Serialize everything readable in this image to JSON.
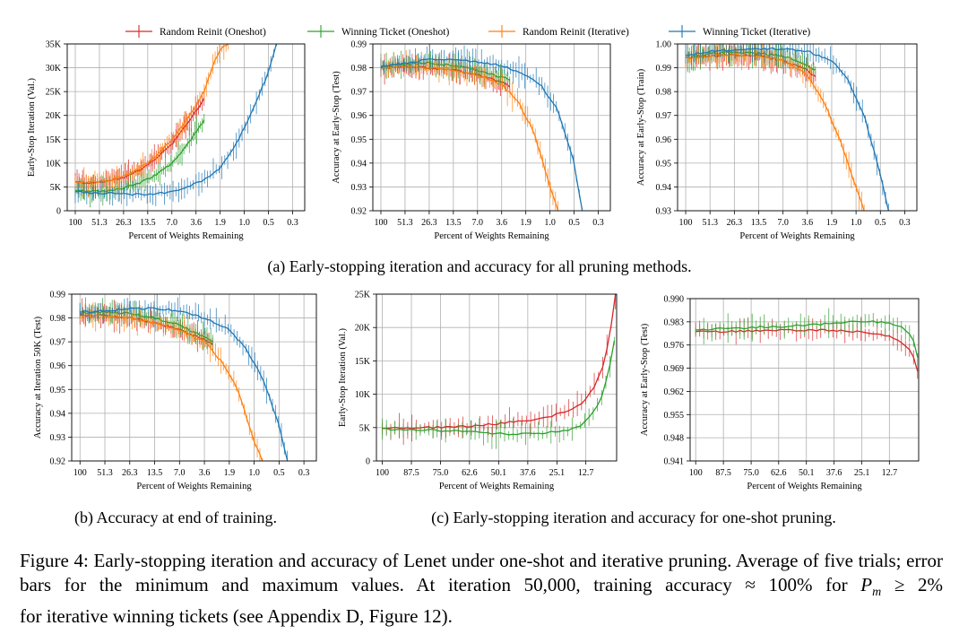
{
  "legend": [
    {
      "key": "rr_one",
      "label": "Random Reinit (Oneshot)",
      "color": "#d62728"
    },
    {
      "key": "wt_one",
      "label": "Winning Ticket (Oneshot)",
      "color": "#2ca02c"
    },
    {
      "key": "rr_it",
      "label": "Random Reinit (Iterative)",
      "color": "#ff7f0e"
    },
    {
      "key": "wt_it",
      "label": "Winning Ticket (Iterative)",
      "color": "#1f77b4"
    }
  ],
  "subcaptions": {
    "a": "(a) Early-stopping iteration and accuracy for all pruning methods.",
    "b": "(b) Accuracy at end of training.",
    "c": "(c) Early-stopping iteration and accuracy for one-shot pruning."
  },
  "caption": {
    "main": "Figure 4: Early-stopping iteration and accuracy of Lenet under one-shot and iterative pruning. Average of five trials; error bars for the minimum and maximum values. At iteration 50,000, training accuracy ",
    "approx": "≈",
    "hundred": "100%",
    "for_word": "for",
    "pm": "P",
    "pm_sub": "m",
    "geq": "≥",
    "two": "2%",
    "tail": "for iterative winning tickets (see Appendix D, Figure 12)."
  },
  "chart_data": [
    {
      "id": "a1",
      "type": "line",
      "xlabel": "Percent of Weights Remaining",
      "ylabel": "Early-Stop Iteration (Val.)",
      "xtick_labels": [
        "100",
        "51.3",
        "26.3",
        "13.5",
        "7.0",
        "3.6",
        "1.9",
        "1.0",
        "0.5",
        "0.3"
      ],
      "xticks_at": [
        0,
        3,
        6,
        9,
        12,
        15,
        18,
        21,
        24,
        27
      ],
      "xlim": [
        -1,
        28.5
      ],
      "ytick_labels": [
        "0",
        "5K",
        "10K",
        "15K",
        "20K",
        "25K",
        "30K",
        "35K"
      ],
      "yticks": [
        0,
        5000,
        10000,
        15000,
        20000,
        25000,
        30000,
        35000
      ],
      "ylim": [
        0,
        35000
      ],
      "series": [
        {
          "key": "rr_one",
          "x": [
            0,
            2,
            4,
            6,
            8,
            10,
            12,
            14,
            16
          ],
          "y": [
            6000,
            5800,
            6200,
            7000,
            8500,
            11000,
            14000,
            18500,
            23500
          ]
        },
        {
          "key": "wt_one",
          "x": [
            0,
            2,
            4,
            6,
            8,
            10,
            12,
            14,
            16
          ],
          "y": [
            4200,
            4000,
            4200,
            4800,
            5800,
            7500,
            10000,
            14000,
            19000
          ]
        },
        {
          "key": "rr_it",
          "x": [
            0,
            2,
            4,
            6,
            8,
            10,
            12,
            14,
            16,
            17,
            18,
            19
          ],
          "y": [
            6000,
            5900,
            6300,
            7200,
            8800,
            11500,
            15000,
            19500,
            25000,
            30000,
            34000,
            35000
          ]
        },
        {
          "key": "wt_it",
          "x": [
            0,
            2,
            4,
            6,
            8,
            10,
            12,
            14,
            16,
            18,
            20,
            22,
            24,
            25
          ],
          "y": [
            4000,
            3800,
            3700,
            3500,
            3400,
            3600,
            4000,
            5000,
            6500,
            9000,
            14000,
            21000,
            29000,
            35000
          ]
        }
      ]
    },
    {
      "id": "a2",
      "type": "line",
      "xlabel": "Percent of Weights Remaining",
      "ylabel": "Accuracy at Early-Stop (Test)",
      "xtick_labels": [
        "100",
        "51.3",
        "26.3",
        "13.5",
        "7.0",
        "3.6",
        "1.9",
        "1.0",
        "0.5",
        "0.3"
      ],
      "xticks_at": [
        0,
        3,
        6,
        9,
        12,
        15,
        18,
        21,
        24,
        27
      ],
      "xlim": [
        -1,
        28.5
      ],
      "ytick_labels": [
        "0.92",
        "0.93",
        "0.94",
        "0.95",
        "0.96",
        "0.97",
        "0.98",
        "0.99"
      ],
      "yticks": [
        0.92,
        0.93,
        0.94,
        0.95,
        0.96,
        0.97,
        0.98,
        0.99
      ],
      "ylim": [
        0.92,
        0.99
      ],
      "series": [
        {
          "key": "rr_one",
          "x": [
            0,
            3,
            6,
            9,
            12,
            15,
            16
          ],
          "y": [
            0.98,
            0.9805,
            0.98,
            0.979,
            0.977,
            0.974,
            0.972
          ]
        },
        {
          "key": "wt_one",
          "x": [
            0,
            3,
            6,
            9,
            12,
            15,
            16
          ],
          "y": [
            0.9805,
            0.9815,
            0.982,
            0.981,
            0.979,
            0.976,
            0.975
          ]
        },
        {
          "key": "rr_it",
          "x": [
            0,
            3,
            6,
            9,
            12,
            15,
            17,
            19,
            21,
            22
          ],
          "y": [
            0.98,
            0.9805,
            0.98,
            0.979,
            0.977,
            0.973,
            0.966,
            0.953,
            0.93,
            0.92
          ]
        },
        {
          "key": "wt_it",
          "x": [
            0,
            3,
            6,
            9,
            12,
            15,
            18,
            20,
            22,
            24,
            25
          ],
          "y": [
            0.9805,
            0.982,
            0.9835,
            0.9835,
            0.9825,
            0.981,
            0.977,
            0.972,
            0.962,
            0.94,
            0.92
          ]
        }
      ]
    },
    {
      "id": "a3",
      "type": "line",
      "xlabel": "Percent of Weights Remaining",
      "ylabel": "Accuracy at Early-Stop (Train)",
      "xtick_labels": [
        "100",
        "51.3",
        "26.3",
        "13.5",
        "7.0",
        "3.6",
        "1.9",
        "1.0",
        "0.5",
        "0.3"
      ],
      "xticks_at": [
        0,
        3,
        6,
        9,
        12,
        15,
        18,
        21,
        24,
        27
      ],
      "xlim": [
        -1,
        28.5
      ],
      "ytick_labels": [
        "0.93",
        "0.94",
        "0.95",
        "0.96",
        "0.97",
        "0.98",
        "0.99",
        "1.00"
      ],
      "yticks": [
        0.93,
        0.94,
        0.95,
        0.96,
        0.97,
        0.98,
        0.99,
        1.0
      ],
      "ylim": [
        0.93,
        1.0
      ],
      "series": [
        {
          "key": "rr_one",
          "x": [
            0,
            3,
            6,
            9,
            12,
            15,
            16
          ],
          "y": [
            0.994,
            0.995,
            0.9955,
            0.995,
            0.993,
            0.989,
            0.986
          ]
        },
        {
          "key": "wt_one",
          "x": [
            0,
            3,
            6,
            9,
            12,
            15,
            16
          ],
          "y": [
            0.994,
            0.996,
            0.9965,
            0.996,
            0.995,
            0.991,
            0.989
          ]
        },
        {
          "key": "rr_it",
          "x": [
            0,
            3,
            6,
            9,
            12,
            15,
            17,
            19,
            21,
            22
          ],
          "y": [
            0.994,
            0.995,
            0.9955,
            0.995,
            0.993,
            0.987,
            0.976,
            0.96,
            0.94,
            0.93
          ]
        },
        {
          "key": "wt_it",
          "x": [
            0,
            3,
            6,
            9,
            12,
            15,
            18,
            20,
            22,
            24,
            25
          ],
          "y": [
            0.995,
            0.997,
            0.9975,
            0.998,
            0.998,
            0.997,
            0.993,
            0.985,
            0.97,
            0.945,
            0.93
          ]
        }
      ]
    },
    {
      "id": "b",
      "type": "line",
      "xlabel": "Percent of Weights Remaining",
      "ylabel": "Accuracy at Iteration 50K (Test)",
      "xtick_labels": [
        "100",
        "51.3",
        "26.3",
        "13.5",
        "7.0",
        "3.6",
        "1.9",
        "1.0",
        "0.5",
        "0.3"
      ],
      "xticks_at": [
        0,
        3,
        6,
        9,
        12,
        15,
        18,
        21,
        24,
        27
      ],
      "xlim": [
        -1,
        28.5
      ],
      "ytick_labels": [
        "0.92",
        "0.93",
        "0.94",
        "0.95",
        "0.96",
        "0.97",
        "0.98",
        "0.99"
      ],
      "yticks": [
        0.92,
        0.93,
        0.94,
        0.95,
        0.96,
        0.97,
        0.98,
        0.99
      ],
      "ylim": [
        0.92,
        0.99
      ],
      "series": [
        {
          "key": "rr_one",
          "x": [
            0,
            3,
            6,
            9,
            12,
            15,
            16
          ],
          "y": [
            0.981,
            0.981,
            0.98,
            0.978,
            0.975,
            0.971,
            0.969
          ]
        },
        {
          "key": "wt_one",
          "x": [
            0,
            3,
            6,
            9,
            12,
            15,
            16
          ],
          "y": [
            0.982,
            0.9825,
            0.982,
            0.98,
            0.977,
            0.972,
            0.97
          ]
        },
        {
          "key": "rr_it",
          "x": [
            0,
            3,
            6,
            9,
            12,
            15,
            17,
            19,
            21,
            22
          ],
          "y": [
            0.981,
            0.981,
            0.98,
            0.978,
            0.975,
            0.97,
            0.962,
            0.95,
            0.928,
            0.92
          ]
        },
        {
          "key": "wt_it",
          "x": [
            0,
            3,
            6,
            9,
            12,
            15,
            18,
            20,
            22,
            24,
            25
          ],
          "y": [
            0.9825,
            0.983,
            0.984,
            0.984,
            0.983,
            0.98,
            0.975,
            0.967,
            0.955,
            0.935,
            0.92
          ]
        }
      ]
    },
    {
      "id": "c1",
      "type": "line",
      "xlabel": "Percent of Weights Remaining",
      "ylabel": "Early-Stop Iteration (Val.)",
      "xtick_labels": [
        "100",
        "87.5",
        "75.0",
        "62.6",
        "50.1",
        "37.6",
        "25.1",
        "12.7"
      ],
      "xticks_at": [
        100,
        87.5,
        75.0,
        62.6,
        50.1,
        37.6,
        25.1,
        12.7
      ],
      "xlim": [
        102.5,
        -0.5
      ],
      "ytick_labels": [
        "0",
        "5K",
        "10K",
        "15K",
        "20K",
        "25K"
      ],
      "yticks": [
        0,
        5000,
        10000,
        15000,
        20000,
        25000
      ],
      "ylim": [
        0,
        25000
      ],
      "series": [
        {
          "key": "rr_one",
          "x": [
            100,
            90,
            80,
            70,
            60,
            50,
            40,
            30,
            20,
            15,
            10,
            6,
            4,
            2,
            0
          ],
          "y": [
            5000,
            4900,
            5000,
            5100,
            5300,
            5600,
            6000,
            6500,
            7500,
            8500,
            10500,
            13500,
            16000,
            20000,
            25000
          ]
        },
        {
          "key": "wt_one",
          "x": [
            100,
            90,
            80,
            70,
            60,
            50,
            40,
            30,
            20,
            15,
            10,
            6,
            4,
            2,
            0.5
          ],
          "y": [
            4800,
            4700,
            4600,
            4500,
            4300,
            4100,
            4000,
            4200,
            4600,
            5300,
            7000,
            9500,
            12000,
            15000,
            18000
          ]
        }
      ]
    },
    {
      "id": "c2",
      "type": "line",
      "xlabel": "Percent of Weights Remaining",
      "ylabel": "Accuracy at Early-Stop (Test)",
      "xtick_labels": [
        "100",
        "87.5",
        "75.0",
        "62.6",
        "50.1",
        "37.6",
        "25.1",
        "12.7"
      ],
      "xticks_at": [
        100,
        87.5,
        75.0,
        62.6,
        50.1,
        37.6,
        25.1,
        12.7
      ],
      "xlim": [
        102.5,
        -0.5
      ],
      "ytick_labels": [
        "0.941",
        "0.948",
        "0.955",
        "0.962",
        "0.969",
        "0.976",
        "0.983",
        "0.990"
      ],
      "yticks": [
        0.941,
        0.948,
        0.955,
        0.962,
        0.969,
        0.976,
        0.983,
        0.99
      ],
      "ylim": [
        0.941,
        0.99
      ],
      "series": [
        {
          "key": "rr_one",
          "x": [
            100,
            90,
            80,
            70,
            60,
            50,
            40,
            30,
            20,
            15,
            10,
            6,
            3,
            1,
            0
          ],
          "y": [
            0.98,
            0.98,
            0.9802,
            0.9803,
            0.9805,
            0.9805,
            0.9805,
            0.9802,
            0.9795,
            0.979,
            0.978,
            0.976,
            0.974,
            0.971,
            0.968
          ]
        },
        {
          "key": "wt_one",
          "x": [
            100,
            90,
            80,
            70,
            60,
            50,
            40,
            30,
            20,
            15,
            10,
            6,
            3,
            1,
            0
          ],
          "y": [
            0.9805,
            0.981,
            0.981,
            0.9815,
            0.9815,
            0.982,
            0.9825,
            0.983,
            0.983,
            0.9828,
            0.9822,
            0.981,
            0.979,
            0.976,
            0.972
          ]
        }
      ]
    }
  ]
}
